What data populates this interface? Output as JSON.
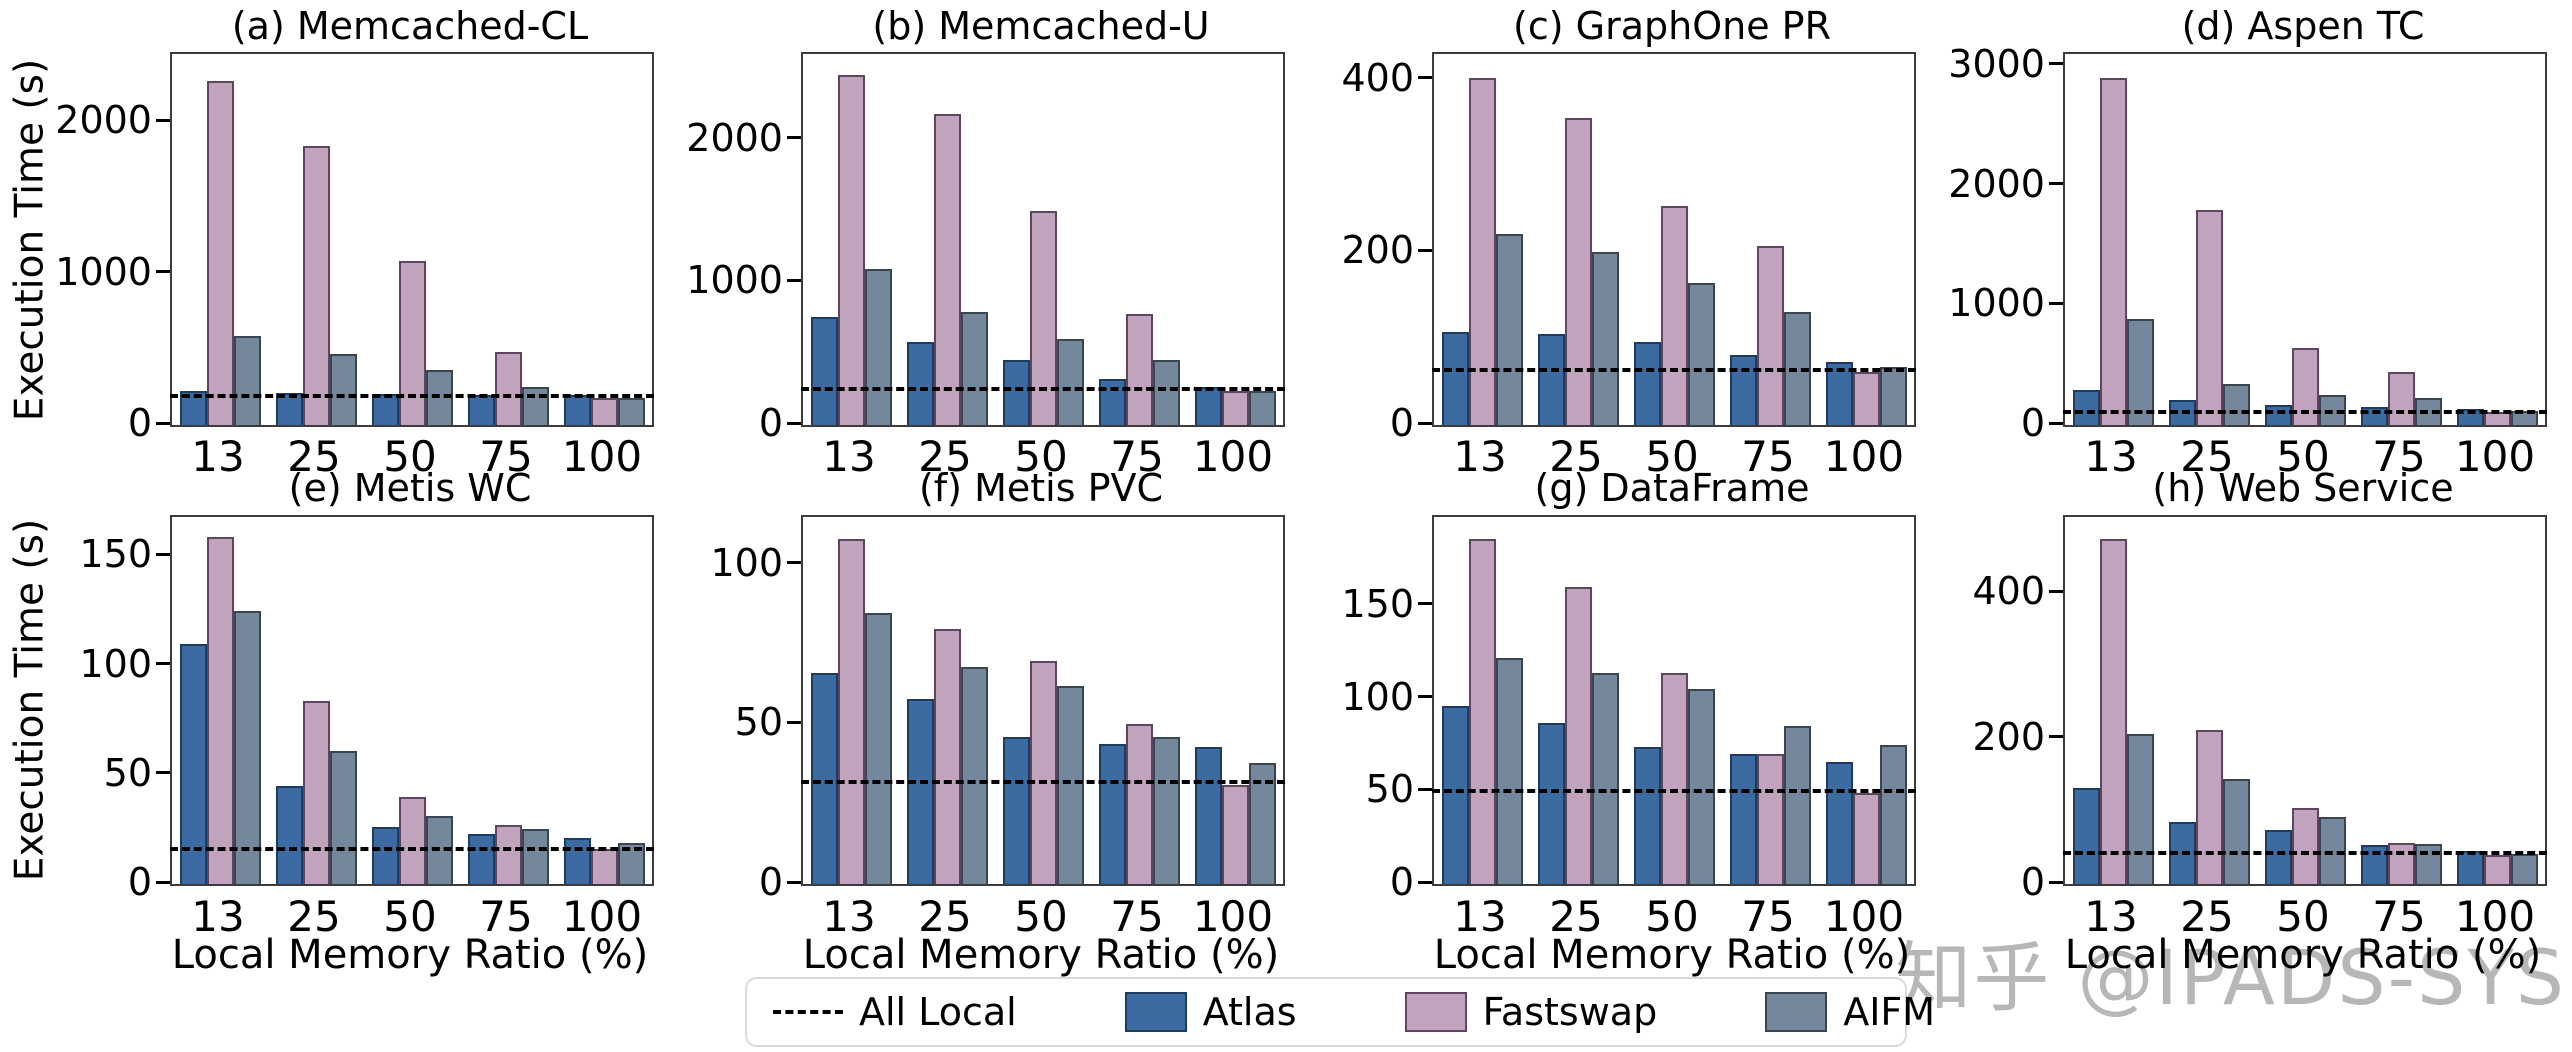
{
  "figure": {
    "ylabel": "Execution Time (s)",
    "xlabel": "Local Memory Ratio (%)",
    "watermark": "知乎 @IPADS-SYS",
    "legend": {
      "all_local": {
        "label": "All Local",
        "line_color": "#000000"
      },
      "series": [
        {
          "name": "Atlas",
          "color": "#3b6ba0",
          "edge": "#1d3d60"
        },
        {
          "name": "Fastswap",
          "color": "#c2a3bd",
          "edge": "#5d4560"
        },
        {
          "name": "AIFM",
          "color": "#75879b",
          "edge": "#3a4552"
        }
      ]
    }
  },
  "chart_data": [
    {
      "type": "bar",
      "id": "a",
      "title": "(a) Memcached-CL",
      "ylim": [
        0,
        2450
      ],
      "yticks": [
        0,
        1000,
        2000
      ],
      "categories": [
        "13",
        "25",
        "50",
        "75",
        "100"
      ],
      "all_local": 190,
      "series": [
        {
          "name": "Atlas",
          "values": [
            225,
            210,
            205,
            200,
            195
          ]
        },
        {
          "name": "Fastswap",
          "values": [
            2270,
            1840,
            1080,
            485,
            180
          ]
        },
        {
          "name": "AIFM",
          "values": [
            585,
            470,
            365,
            250,
            180
          ]
        }
      ]
    },
    {
      "type": "bar",
      "id": "b",
      "title": "(b) Memcached-U",
      "ylim": [
        0,
        2600
      ],
      "yticks": [
        0,
        1000,
        2000
      ],
      "categories": [
        "13",
        "25",
        "50",
        "75",
        "100"
      ],
      "all_local": 250,
      "series": [
        {
          "name": "Atlas",
          "values": [
            760,
            585,
            455,
            325,
            265
          ]
        },
        {
          "name": "Fastswap",
          "values": [
            2450,
            2180,
            1500,
            775,
            235
          ]
        },
        {
          "name": "AIFM",
          "values": [
            1090,
            795,
            605,
            455,
            240
          ]
        }
      ]
    },
    {
      "type": "bar",
      "id": "c",
      "title": "(c) GraphOne PR",
      "ylim": [
        0,
        430
      ],
      "yticks": [
        0,
        200,
        400
      ],
      "categories": [
        "13",
        "25",
        "50",
        "75",
        "100"
      ],
      "all_local": 64,
      "series": [
        {
          "name": "Atlas",
          "values": [
            108,
            105,
            96,
            81,
            73
          ]
        },
        {
          "name": "Fastswap",
          "values": [
            402,
            356,
            254,
            208,
            61
          ]
        },
        {
          "name": "AIFM",
          "values": [
            221,
            200,
            165,
            131,
            67
          ]
        }
      ]
    },
    {
      "type": "bar",
      "id": "d",
      "title": "(d) Aspen TC",
      "ylim": [
        0,
        3100
      ],
      "yticks": [
        0,
        1000,
        2000,
        3000
      ],
      "categories": [
        "13",
        "25",
        "50",
        "75",
        "100"
      ],
      "all_local": 110,
      "series": [
        {
          "name": "Atlas",
          "values": [
            290,
            208,
            165,
            150,
            135
          ]
        },
        {
          "name": "Fastswap",
          "values": [
            2900,
            1800,
            640,
            440,
            110
          ]
        },
        {
          "name": "AIFM",
          "values": [
            885,
            342,
            250,
            225,
            115
          ]
        }
      ]
    },
    {
      "type": "bar",
      "id": "e",
      "title": "(e) Metis WC",
      "ylim": [
        0,
        168
      ],
      "yticks": [
        0,
        50,
        100,
        150
      ],
      "categories": [
        "13",
        "25",
        "50",
        "75",
        "100"
      ],
      "all_local": 16,
      "series": [
        {
          "name": "Atlas",
          "values": [
            110,
            45,
            26,
            23,
            21
          ]
        },
        {
          "name": "Fastswap",
          "values": [
            159,
            84,
            40,
            27,
            16
          ]
        },
        {
          "name": "AIFM",
          "values": [
            125,
            61,
            31,
            25,
            19
          ]
        }
      ]
    },
    {
      "type": "bar",
      "id": "f",
      "title": "(f) Metis PVC",
      "ylim": [
        0,
        115
      ],
      "yticks": [
        0,
        50,
        100
      ],
      "categories": [
        "13",
        "25",
        "50",
        "75",
        "100"
      ],
      "all_local": 32,
      "series": [
        {
          "name": "Atlas",
          "values": [
            66,
            58,
            46,
            44,
            43
          ]
        },
        {
          "name": "Fastswap",
          "values": [
            108,
            80,
            70,
            50,
            31
          ]
        },
        {
          "name": "AIFM",
          "values": [
            85,
            68,
            62,
            46,
            38
          ]
        }
      ]
    },
    {
      "type": "bar",
      "id": "g",
      "title": "(g) DataFrame",
      "ylim": [
        0,
        198
      ],
      "yticks": [
        0,
        50,
        100,
        150
      ],
      "categories": [
        "13",
        "25",
        "50",
        "75",
        "100"
      ],
      "all_local": 50,
      "series": [
        {
          "name": "Atlas",
          "values": [
            96,
            87,
            74,
            70,
            66
          ]
        },
        {
          "name": "Fastswap",
          "values": [
            186,
            160,
            114,
            70,
            49
          ]
        },
        {
          "name": "AIFM",
          "values": [
            122,
            114,
            105,
            85,
            75
          ]
        }
      ]
    },
    {
      "type": "bar",
      "id": "h",
      "title": "(h) Web Service",
      "ylim": [
        0,
        505
      ],
      "yticks": [
        0,
        200,
        400
      ],
      "categories": [
        "13",
        "25",
        "50",
        "75",
        "100"
      ],
      "all_local": 43,
      "series": [
        {
          "name": "Atlas",
          "values": [
            132,
            85,
            75,
            54,
            46
          ]
        },
        {
          "name": "Fastswap",
          "values": [
            475,
            212,
            105,
            56,
            40
          ]
        },
        {
          "name": "AIFM",
          "values": [
            207,
            145,
            92,
            55,
            41
          ]
        }
      ]
    }
  ]
}
